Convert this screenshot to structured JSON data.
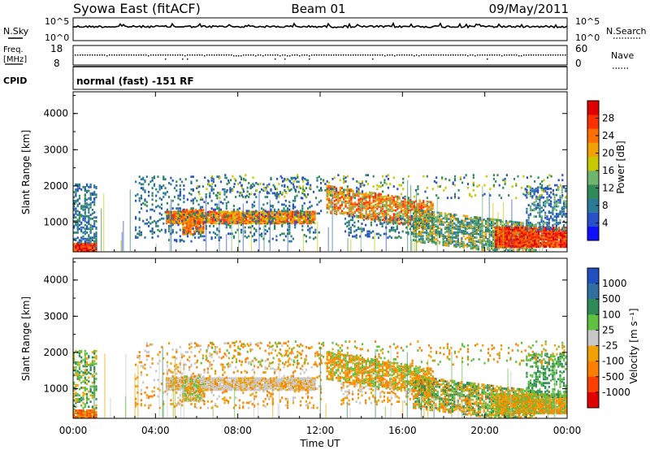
{
  "header": {
    "station": "Syowa East (fitACF)",
    "beam": "Beam 01",
    "date": "09/May/2011"
  },
  "panels": {
    "nsky_label": "N.Sky",
    "nsearch_label": "N.Search",
    "nsky_ticks": [
      "10^5",
      "10^0"
    ],
    "nsearch_ticks": [
      "10^5",
      "10^0"
    ],
    "freq_label_1": "Freq.",
    "freq_label_2": "[MHz]",
    "freq_ticks": [
      "18",
      "8"
    ],
    "nave_label": "Nave",
    "nave_ticks": [
      "60",
      "0"
    ],
    "cpid_label": "CPID",
    "cpid_text": "normal (fast) -151 RF"
  },
  "colors": {
    "power_scale": [
      "#1010ff",
      "#2850c8",
      "#2a7a9a",
      "#2e8b57",
      "#6fb46f",
      "#c8c800",
      "#f0a000",
      "#ff7000",
      "#ff3000",
      "#e00000"
    ],
    "velocity_scale": [
      "#2050c0",
      "#3070a0",
      "#2e8b57",
      "#60c040",
      "#c8c8c8",
      "#f0a000",
      "#ff8000",
      "#ff4000",
      "#e00000"
    ]
  },
  "chart_data": [
    {
      "type": "heatmap",
      "ylabel": "Slant Range [km]",
      "yticks": [
        "1000",
        "2000",
        "3000",
        "4000"
      ],
      "ylim": [
        180,
        4600
      ],
      "xticks": [
        "00:00",
        "04:00",
        "08:00",
        "12:00",
        "16:00",
        "20:00",
        "00:00"
      ],
      "colorbar": {
        "label": "Power [dB]",
        "ticks": [
          "4",
          "8",
          "12",
          "16",
          "20",
          "24",
          "28"
        ],
        "range": [
          0,
          32
        ]
      }
    },
    {
      "type": "heatmap",
      "ylabel": "Slant Range [km]",
      "yticks": [
        "1000",
        "2000",
        "3000",
        "4000"
      ],
      "ylim": [
        180,
        4600
      ],
      "xticks": [
        "00:00",
        "04:00",
        "08:00",
        "12:00",
        "16:00",
        "20:00",
        "00:00"
      ],
      "xlabel": "Time UT",
      "colorbar": {
        "label": "Velocity [m s⁻¹]",
        "ticks": [
          "1000",
          "500",
          "100",
          "25",
          "-25",
          "-100",
          "-500",
          "-1000"
        ]
      }
    }
  ]
}
